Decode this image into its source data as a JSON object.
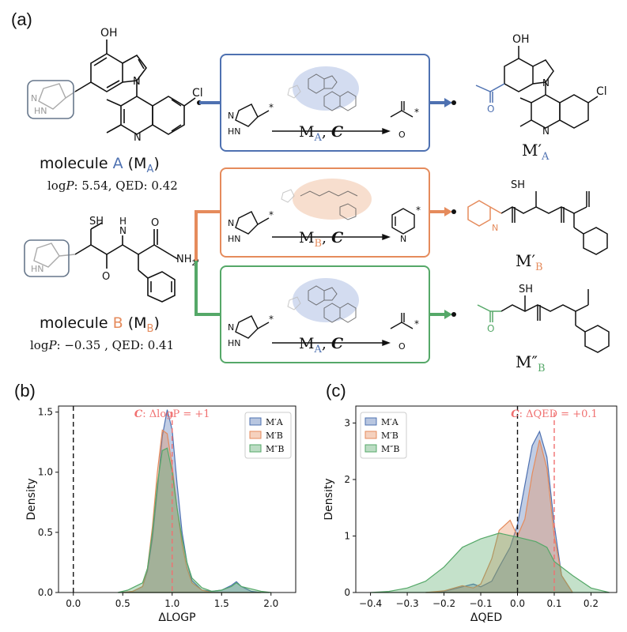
{
  "panels": {
    "a": "(a)",
    "b": "(b)",
    "c": "(c)"
  },
  "colors": {
    "blue": "#4e71b1",
    "orange": "#e58b5c",
    "green": "#55a868",
    "red_dash": "#f07070",
    "box_gray": "#67778b"
  },
  "molecules": {
    "A": {
      "caption_pre": "molecule ",
      "letter": "A",
      "caption_sub": "A",
      "logp_label": "log",
      "logp_var": "P",
      "logp_value": ": 5.54,  QED: 0.42"
    },
    "B": {
      "caption_pre": "molecule ",
      "letter": "B",
      "caption_sub": "B",
      "logp_label": "log",
      "logp_var": "P",
      "logp_value": ": −0.35 ,  QED: 0.41"
    }
  },
  "atoms": {
    "OH": "OH",
    "Cl": "Cl",
    "N": "N",
    "HN": "HN",
    "SH": "SH",
    "NH2": "NH",
    "NH2_sub": "2",
    "H": "H",
    "O": "O",
    "star": "*"
  },
  "operations": {
    "top": {
      "M": "M",
      "sub": "A",
      "cond": "C"
    },
    "mid": {
      "M": "M",
      "sub": "B",
      "cond": "C"
    },
    "bot": {
      "M": "M",
      "sub": "A",
      "cond": "C"
    }
  },
  "products": {
    "top": {
      "M": "M",
      "prime": "′",
      "sub": "A"
    },
    "mid": {
      "M": "M",
      "prime": "′",
      "sub": "B"
    },
    "bot": {
      "M": "M",
      "prime": "″",
      "sub": "B"
    }
  },
  "chart_data": [
    {
      "type": "area",
      "panel": "(b)",
      "xlabel": "ΔLOGP",
      "ylabel": "Density",
      "xlim": [
        -0.15,
        2.25
      ],
      "ylim": [
        0,
        1.55
      ],
      "xticks": [
        "0.0",
        "0.5",
        "1.0",
        "1.5",
        "2.0"
      ],
      "yticks": [
        "0.0",
        "0.5",
        "1.0",
        "1.5"
      ],
      "annotation": {
        "cond": "C",
        "text": ": ΔlogP = +1",
        "x": 1.0
      },
      "reference_lines": [
        0,
        1.0
      ],
      "legend": {
        "placement": "top-right",
        "entries": [
          "M′A",
          "M′B",
          "M″B"
        ]
      },
      "series": [
        {
          "name": "M′A",
          "color": "#4e71b1",
          "x": [
            0.5,
            0.6,
            0.7,
            0.75,
            0.8,
            0.85,
            0.9,
            0.95,
            1.0,
            1.05,
            1.1,
            1.15,
            1.2,
            1.3,
            1.4,
            1.5,
            1.6,
            1.65,
            1.7,
            1.8,
            1.9
          ],
          "y": [
            0,
            0.01,
            0.05,
            0.18,
            0.45,
            0.85,
            1.3,
            1.52,
            1.35,
            0.9,
            0.5,
            0.25,
            0.1,
            0.02,
            0.01,
            0.02,
            0.06,
            0.09,
            0.05,
            0.01,
            0
          ]
        },
        {
          "name": "M′B",
          "color": "#e58b5c",
          "x": [
            0.5,
            0.6,
            0.7,
            0.75,
            0.8,
            0.85,
            0.9,
            0.95,
            1.0,
            1.05,
            1.1,
            1.15,
            1.2,
            1.3,
            1.4,
            1.5,
            1.6,
            1.7,
            1.8,
            1.9
          ],
          "y": [
            0,
            0.01,
            0.05,
            0.2,
            0.55,
            1.0,
            1.35,
            1.32,
            1.05,
            0.7,
            0.4,
            0.2,
            0.08,
            0.02,
            0,
            0,
            0,
            0,
            0,
            0
          ]
        },
        {
          "name": "M″B",
          "color": "#55a868",
          "x": [
            0.45,
            0.55,
            0.6,
            0.7,
            0.75,
            0.8,
            0.85,
            0.9,
            0.95,
            1.0,
            1.05,
            1.1,
            1.15,
            1.2,
            1.3,
            1.4,
            1.5,
            1.6,
            1.65,
            1.7,
            1.8,
            1.9,
            2.0
          ],
          "y": [
            0,
            0.02,
            0.04,
            0.08,
            0.2,
            0.5,
            0.9,
            1.18,
            1.2,
            1.0,
            0.7,
            0.45,
            0.25,
            0.12,
            0.04,
            0.01,
            0.02,
            0.05,
            0.08,
            0.05,
            0.03,
            0.01,
            0
          ]
        }
      ]
    },
    {
      "type": "area",
      "panel": "(c)",
      "xlabel": "ΔQED",
      "ylabel": "Density",
      "xlim": [
        -0.44,
        0.27
      ],
      "ylim": [
        0,
        3.3
      ],
      "xticks": [
        "−0.4",
        "−0.3",
        "−0.2",
        "−0.1",
        "0.0",
        "0.1",
        "0.2"
      ],
      "yticks": [
        "0",
        "1",
        "2",
        "3"
      ],
      "annotation": {
        "cond": "C",
        "text": ": ΔQED = +0.1",
        "x": 0.1
      },
      "reference_lines": [
        0,
        0.1
      ],
      "legend": {
        "placement": "top-left",
        "entries": [
          "M′A",
          "M′B",
          "M″B"
        ]
      },
      "series": [
        {
          "name": "M′A",
          "color": "#4e71b1",
          "x": [
            -0.25,
            -0.2,
            -0.15,
            -0.12,
            -0.1,
            -0.07,
            -0.05,
            -0.02,
            0,
            0.02,
            0.04,
            0.06,
            0.08,
            0.1,
            0.12,
            0.15
          ],
          "y": [
            0,
            0.02,
            0.1,
            0.15,
            0.1,
            0.2,
            0.45,
            0.8,
            1.2,
            1.9,
            2.6,
            2.85,
            2.4,
            1.2,
            0.3,
            0
          ]
        },
        {
          "name": "M′B",
          "color": "#e58b5c",
          "x": [
            -0.25,
            -0.2,
            -0.15,
            -0.12,
            -0.1,
            -0.07,
            -0.05,
            -0.02,
            0,
            0.02,
            0.04,
            0.06,
            0.08,
            0.1,
            0.12,
            0.15
          ],
          "y": [
            0,
            0.03,
            0.12,
            0.08,
            0.15,
            0.6,
            1.1,
            1.28,
            1.0,
            1.3,
            2.1,
            2.7,
            2.2,
            1.0,
            0.3,
            0
          ]
        },
        {
          "name": "M″B",
          "color": "#55a868",
          "x": [
            -0.4,
            -0.35,
            -0.3,
            -0.25,
            -0.2,
            -0.15,
            -0.1,
            -0.05,
            0,
            0.05,
            0.08,
            0.1,
            0.15,
            0.2,
            0.25
          ],
          "y": [
            0,
            0.02,
            0.08,
            0.2,
            0.45,
            0.8,
            0.95,
            1.05,
            0.98,
            0.9,
            0.8,
            0.55,
            0.3,
            0.08,
            0
          ]
        }
      ]
    }
  ]
}
